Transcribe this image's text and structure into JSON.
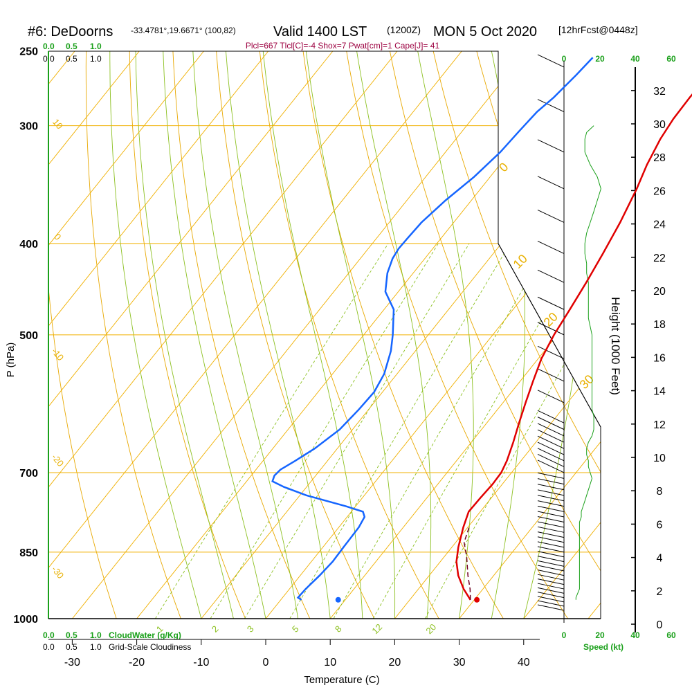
{
  "header": {
    "station": "#6: DeDoorns",
    "coords": "-33.4781°,19.6671° (100,82)",
    "valid_main": "Valid 1400 LST",
    "valid_utc": "(1200Z)",
    "date": "MON 5 Oct 2020",
    "forecast": "[12hrFcst@0448z]",
    "params": "Plcl=667 Tlcl[C]=-4 Shox=7 Pwat[cm]=1 Cape[J]= 41"
  },
  "cloud_scale": {
    "green_top": [
      "0.0",
      "0.5",
      "1.0"
    ],
    "black_top": [
      "0.0",
      "0.5",
      "1.0"
    ],
    "green_bottom": [
      "0.0",
      "0.5",
      "1.0"
    ],
    "green_bottom_label": "CloudWater (g/Kg)",
    "black_bottom": [
      "0.0",
      "0.5",
      "1.0"
    ],
    "black_bottom_label": "Grid-Scale Cloudiness"
  },
  "speed_scale": {
    "top": [
      "0",
      "20",
      "40",
      "60"
    ],
    "bottom": [
      "0",
      "20",
      "40",
      "60"
    ],
    "label": "Speed (kt)"
  },
  "chart_data": {
    "type": "line",
    "title": "",
    "xlabel": "Temperature (C)",
    "ylabel": "P (hPa)",
    "y2label": "Height (1000 Feet)",
    "xlim": [
      -35,
      40
    ],
    "ylim_hpa": [
      1000,
      250
    ],
    "x_ticks": [
      -30,
      -20,
      -10,
      0,
      10,
      20,
      30,
      40
    ],
    "p_ticks": [
      250,
      300,
      400,
      500,
      700,
      850,
      1000
    ],
    "height_ticks": [
      0,
      2,
      4,
      6,
      8,
      10,
      12,
      14,
      16,
      18,
      20,
      22,
      24,
      26,
      28,
      30,
      32
    ],
    "isotherm_labels": [
      "10",
      "0",
      "-10",
      "-20",
      "-30",
      "0",
      "10",
      "20",
      "30"
    ],
    "mixing_ratio_labels": [
      "1",
      "2",
      "3",
      "5",
      "8",
      "12",
      "20"
    ],
    "colors": {
      "temperature": "#e00000",
      "dewpoint": "#1565ff",
      "isobar": "#f0b000",
      "isotherm": "#f0b000",
      "dry_adiabat": "#e8a800",
      "moist_adiabat": "#8cc020",
      "mixing_ratio": "#8cc020",
      "cloud": "#1aa01a",
      "wind_speed": "#1aa01a",
      "parcel": "#700020"
    },
    "series": [
      {
        "name": "Temperature",
        "points": [
          [
            29.4,
            955
          ],
          [
            27,
            930
          ],
          [
            24.5,
            900
          ],
          [
            22.5,
            870
          ],
          [
            21,
            840
          ],
          [
            19.3,
            800
          ],
          [
            18.2,
            770
          ],
          [
            18.3,
            745
          ],
          [
            18.5,
            720
          ],
          [
            18.4,
            700
          ],
          [
            17.8,
            680
          ],
          [
            16.5,
            650
          ],
          [
            15,
            620
          ],
          [
            13.5,
            590
          ],
          [
            12,
            560
          ],
          [
            10.5,
            530
          ],
          [
            9.5,
            500
          ],
          [
            8.8,
            470
          ],
          [
            8,
            440
          ],
          [
            7,
            410
          ],
          [
            5.8,
            380
          ],
          [
            4.2,
            350
          ],
          [
            2.8,
            330
          ],
          [
            1.7,
            310
          ],
          [
            1.2,
            295
          ],
          [
            1.1,
            280
          ],
          [
            1.2,
            265
          ],
          [
            1.5,
            252
          ]
        ]
      },
      {
        "name": "Dew Point",
        "points": [
          [
            3.2,
            955
          ],
          [
            2.4,
            950
          ],
          [
            2.5,
            930
          ],
          [
            3,
            900
          ],
          [
            3.3,
            870
          ],
          [
            3.2,
            840
          ],
          [
            3.1,
            800
          ],
          [
            2.7,
            780
          ],
          [
            1.8,
            770
          ],
          [
            -1.5,
            760
          ],
          [
            -9,
            740
          ],
          [
            -13.5,
            725
          ],
          [
            -16,
            715
          ],
          [
            -16.4,
            705
          ],
          [
            -16.2,
            695
          ],
          [
            -15,
            680
          ],
          [
            -13.5,
            660
          ],
          [
            -12,
            630
          ],
          [
            -11.5,
            600
          ],
          [
            -11.3,
            575
          ],
          [
            -12,
            550
          ],
          [
            -13.8,
            520
          ],
          [
            -15.5,
            500
          ],
          [
            -18.5,
            470
          ],
          [
            -22,
            450
          ],
          [
            -24,
            430
          ],
          [
            -25,
            415
          ],
          [
            -25.3,
            405
          ],
          [
            -25.2,
            395
          ],
          [
            -25,
            380
          ],
          [
            -24,
            360
          ],
          [
            -22.5,
            340
          ],
          [
            -21.5,
            320
          ],
          [
            -21.2,
            305
          ],
          [
            -20.8,
            290
          ],
          [
            -20,
            280
          ],
          [
            -19.3,
            265
          ],
          [
            -18.9,
            254
          ]
        ]
      },
      {
        "name": "Parcel",
        "points": [
          [
            29.4,
            955
          ],
          [
            28,
            930
          ],
          [
            26,
            900
          ],
          [
            23.5,
            860
          ],
          [
            21.3,
            830
          ],
          [
            20.2,
            800
          ]
        ]
      }
    ],
    "surface": {
      "temperature": 30.4,
      "dewpoint": 8.9,
      "pressure": 955
    },
    "wind_speed_kt": [
      [
        7,
        300
      ],
      [
        3,
        305
      ],
      [
        2,
        310
      ],
      [
        2,
        320
      ],
      [
        5,
        330
      ],
      [
        9,
        340
      ],
      [
        11,
        350
      ],
      [
        9,
        360
      ],
      [
        7,
        370
      ],
      [
        5,
        380
      ],
      [
        3,
        390
      ],
      [
        2,
        400
      ],
      [
        2,
        410
      ],
      [
        3,
        420
      ],
      [
        3,
        430
      ],
      [
        4,
        440
      ],
      [
        4,
        450
      ],
      [
        4,
        460
      ],
      [
        4,
        470
      ],
      [
        4,
        480
      ],
      [
        5,
        490
      ],
      [
        6,
        500
      ],
      [
        6,
        510
      ],
      [
        6,
        520
      ],
      [
        6,
        530
      ],
      [
        6,
        540
      ],
      [
        6,
        550
      ],
      [
        6,
        560
      ],
      [
        6,
        570
      ],
      [
        6,
        580
      ],
      [
        6,
        590
      ],
      [
        6,
        600
      ],
      [
        7,
        610
      ],
      [
        7,
        620
      ],
      [
        7,
        630
      ],
      [
        6,
        640
      ],
      [
        4,
        650
      ],
      [
        3,
        660
      ],
      [
        3,
        670
      ],
      [
        4,
        680
      ],
      [
        4,
        690
      ],
      [
        5,
        700
      ],
      [
        6,
        710
      ],
      [
        5,
        720
      ],
      [
        4,
        730
      ],
      [
        3,
        740
      ],
      [
        2,
        750
      ],
      [
        1,
        760
      ],
      [
        0,
        770
      ],
      [
        0,
        780
      ],
      [
        -1,
        790
      ],
      [
        -1,
        800
      ],
      [
        -1,
        810
      ],
      [
        -1,
        820
      ],
      [
        -1,
        830
      ],
      [
        -1,
        840
      ],
      [
        -1,
        850
      ],
      [
        -1,
        860
      ],
      [
        -1,
        870
      ],
      [
        -1,
        880
      ],
      [
        -1,
        890
      ],
      [
        -1,
        900
      ],
      [
        -1,
        910
      ],
      [
        -1,
        920
      ],
      [
        -1,
        930
      ],
      [
        -2,
        940
      ],
      [
        -3,
        950
      ],
      [
        -3,
        955
      ]
    ]
  },
  "axis": {
    "xlabel": "Temperature (C)",
    "ylabel": "P (hPa)",
    "height_label": "Height (1000 Feet)"
  }
}
